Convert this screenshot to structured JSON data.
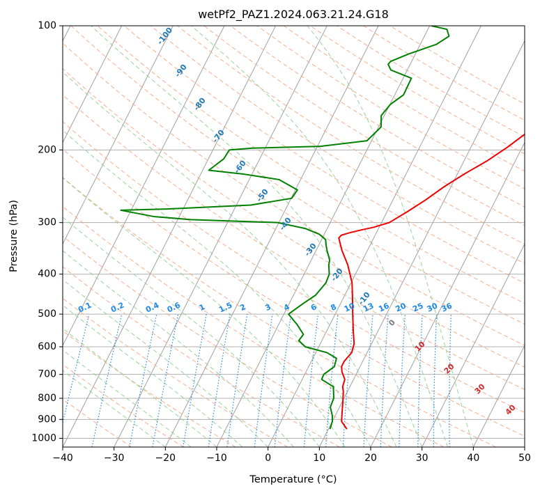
{
  "chart_data": {
    "type": "line",
    "title": "wetPf2_PAZ1.2024.063.21.24.G18",
    "xlabel": "Temperature (°C)",
    "ylabel": "Pressure (hPa)",
    "xlim": [
      -40,
      50
    ],
    "ylim": [
      1050,
      100
    ],
    "y_scale": "log",
    "x_ticks": [
      "−40",
      "−30",
      "−20",
      "−10",
      "0",
      "10",
      "20",
      "30",
      "40",
      "50"
    ],
    "x_tick_values": [
      -40,
      -30,
      -20,
      -10,
      0,
      10,
      20,
      30,
      40,
      50
    ],
    "y_ticks": [
      "100",
      "200",
      "300",
      "400",
      "500",
      "600",
      "700",
      "800",
      "900",
      "1000"
    ],
    "y_tick_values": [
      100,
      200,
      300,
      400,
      500,
      600,
      700,
      800,
      900,
      1000
    ],
    "grid": true,
    "skew_t": true,
    "colors": {
      "temperature": "#ee0000",
      "dewpoint": "#008000",
      "isotherm": "#a0a0a0",
      "dry_adiabat": "#f4a582",
      "moist_adiabat": "#8fcc8f",
      "mixing_ratio": "#1e88e5",
      "dry_label": "#d62728",
      "upper_label": "#1f77b4"
    },
    "series": [
      {
        "key": "temperature",
        "points": [
          [
            13.6,
            950
          ],
          [
            11.8,
            910
          ],
          [
            11.1,
            870
          ],
          [
            10.2,
            820
          ],
          [
            9.2,
            770
          ],
          [
            8.6,
            750
          ],
          [
            8.3,
            720
          ],
          [
            7.0,
            690
          ],
          [
            6.4,
            670
          ],
          [
            6.4,
            650
          ],
          [
            7.0,
            620
          ],
          [
            6.6,
            590
          ],
          [
            5.2,
            550
          ],
          [
            3.4,
            500
          ],
          [
            1.9,
            460
          ],
          [
            0.2,
            420
          ],
          [
            -2.4,
            380
          ],
          [
            -5.0,
            350
          ],
          [
            -6.8,
            327
          ],
          [
            -6.6,
            322
          ],
          [
            -5.4,
            318
          ],
          [
            -3.4,
            313
          ],
          [
            -1.1,
            308
          ],
          [
            1.5,
            300
          ],
          [
            4.0,
            282
          ],
          [
            6.4,
            264
          ],
          [
            8.6,
            246
          ],
          [
            11.3,
            229
          ],
          [
            14.6,
            212
          ],
          [
            17.1,
            197
          ],
          [
            19.4,
            182
          ],
          [
            21.4,
            169
          ],
          [
            23.6,
            154
          ],
          [
            25.8,
            139
          ],
          [
            27.6,
            126
          ],
          [
            29.1,
            114
          ],
          [
            30.8,
            106
          ],
          [
            32.7,
            100
          ]
        ]
      },
      {
        "key": "dewpoint",
        "points": [
          [
            10.3,
            950
          ],
          [
            10.0,
            910
          ],
          [
            9.4,
            880
          ],
          [
            8.2,
            840
          ],
          [
            8.0,
            800
          ],
          [
            6.8,
            750
          ],
          [
            3.8,
            720
          ],
          [
            3.7,
            700
          ],
          [
            5.0,
            670
          ],
          [
            4.6,
            640
          ],
          [
            2.2,
            620
          ],
          [
            -2.6,
            600
          ],
          [
            -4.5,
            580
          ],
          [
            -4.2,
            560
          ],
          [
            -6.4,
            530
          ],
          [
            -9.1,
            500
          ],
          [
            -7.2,
            470
          ],
          [
            -5.7,
            450
          ],
          [
            -4.9,
            420
          ],
          [
            -5.1,
            400
          ],
          [
            -6.1,
            380
          ],
          [
            -6.4,
            370
          ],
          [
            -7.9,
            350
          ],
          [
            -8.6,
            340
          ],
          [
            -9.2,
            330
          ],
          [
            -11.0,
            320
          ],
          [
            -14.3,
            310
          ],
          [
            -20.2,
            300
          ],
          [
            -37.5,
            295
          ],
          [
            -45.0,
            290
          ],
          [
            -52.0,
            280
          ],
          [
            -43.0,
            278
          ],
          [
            -27.2,
            272
          ],
          [
            -19.9,
            262
          ],
          [
            -19.6,
            250
          ],
          [
            -24.2,
            236
          ],
          [
            -31.5,
            229
          ],
          [
            -38.8,
            224
          ],
          [
            -37.0,
            210
          ],
          [
            -36.8,
            200
          ],
          [
            -32.6,
            198
          ],
          [
            -19.4,
            196
          ],
          [
            -10.9,
            190
          ],
          [
            -9.5,
            176
          ],
          [
            -10.6,
            165
          ],
          [
            -9.9,
            155
          ],
          [
            -8.3,
            147
          ],
          [
            -8.4,
            134
          ],
          [
            -13.2,
            128
          ],
          [
            -14.3,
            124
          ],
          [
            -14.1,
            122
          ],
          [
            -11.3,
            117
          ],
          [
            -6.9,
            111
          ],
          [
            -5.2,
            106
          ],
          [
            -6.3,
            102
          ],
          [
            -9.7,
            100
          ]
        ]
      }
    ],
    "upper_isotherm_labels": [
      "-100",
      "-90",
      "-80",
      "-70",
      "-60",
      "-50",
      "-40",
      "-30",
      "-20",
      "-10"
    ],
    "dry_adiabat_labels": [
      "0",
      "10",
      "20",
      "30",
      "40"
    ],
    "mixing_ratio_labels": [
      "0.1",
      "0.2",
      "0.4",
      "0.6",
      "1",
      "1.5",
      "2",
      "3",
      "4",
      "6",
      "8",
      "10",
      "13",
      "16",
      "20",
      "25",
      "30",
      "36"
    ]
  }
}
